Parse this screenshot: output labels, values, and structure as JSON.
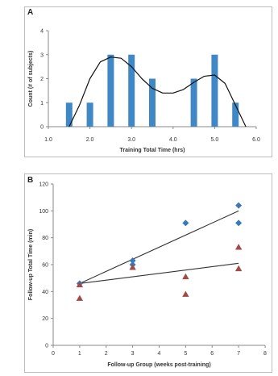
{
  "chart_data": [
    {
      "panel": "A",
      "type": "bar",
      "xlabel": "Training Total Time (hrs)",
      "ylabel": "Count (# of subjects)",
      "xlim": [
        1.0,
        6.0
      ],
      "ylim": [
        0,
        4
      ],
      "x_ticks": [
        "1.0",
        "2.0",
        "3.0",
        "4.0",
        "5.0",
        "6.0"
      ],
      "y_ticks": [
        "0",
        "1",
        "2",
        "3",
        "4"
      ],
      "x": [
        1.5,
        1.75,
        2.0,
        2.25,
        2.5,
        2.75,
        3.0,
        3.25,
        3.5,
        3.75,
        4.0,
        4.25,
        4.5,
        4.75,
        5.0,
        5.25,
        5.5
      ],
      "values": [
        1,
        0,
        1,
        0,
        3,
        0,
        3,
        0,
        2,
        0,
        0,
        0,
        2,
        0,
        3,
        0,
        1
      ],
      "curve": {
        "x": [
          1.5,
          1.75,
          2.0,
          2.25,
          2.5,
          2.75,
          3.0,
          3.25,
          3.5,
          3.75,
          4.0,
          4.25,
          4.5,
          4.75,
          5.0,
          5.25,
          5.5,
          5.75
        ],
        "y": [
          0.0,
          0.9,
          2.0,
          2.7,
          2.9,
          2.85,
          2.5,
          2.0,
          1.6,
          1.4,
          1.4,
          1.55,
          1.85,
          2.1,
          2.15,
          1.8,
          0.9,
          0.0
        ]
      },
      "bar_color": "#3f88c5",
      "curve_color": "#111111"
    },
    {
      "panel": "B",
      "type": "scatter",
      "xlabel": "Follow-up Group (weeks post-training)",
      "ylabel": "Follow-up Total Time (min)",
      "xlim": [
        0,
        8
      ],
      "ylim": [
        0,
        120
      ],
      "x_ticks": [
        "0",
        "1",
        "2",
        "3",
        "4",
        "5",
        "6",
        "7",
        "8"
      ],
      "y_ticks": [
        "0",
        "20",
        "40",
        "60",
        "80",
        "100",
        "120"
      ],
      "series": [
        {
          "marker": "diamond",
          "color": "#3a78b8",
          "x": [
            1,
            3,
            3,
            5,
            7,
            7
          ],
          "y": [
            46,
            63,
            60,
            91,
            104,
            91
          ],
          "trend": {
            "x": [
              1,
              7
            ],
            "y": [
              46,
              100
            ]
          }
        },
        {
          "marker": "triangle",
          "color": "#a04a4a",
          "x": [
            1,
            1,
            3,
            5,
            5,
            7,
            7
          ],
          "y": [
            45,
            35,
            58,
            51,
            38,
            73,
            57
          ],
          "trend": {
            "x": [
              1,
              7
            ],
            "y": [
              46,
              61
            ]
          }
        }
      ]
    }
  ]
}
